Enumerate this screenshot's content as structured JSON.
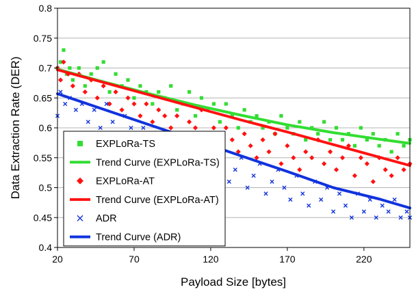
{
  "chart_data": {
    "type": "scatter",
    "title": "",
    "xlabel": "Payload Size [bytes]",
    "ylabel": "Data Extraction Rate (DER)",
    "xlim": [
      20,
      250
    ],
    "ylim": [
      0.4,
      0.8
    ],
    "xticks": [
      20,
      70,
      120,
      170,
      220
    ],
    "xtick_labels": [
      "20",
      "70",
      "120",
      "170",
      "220"
    ],
    "yticks": [
      0.4,
      0.45,
      0.5,
      0.55,
      0.6,
      0.65,
      0.7,
      0.75,
      0.8
    ],
    "ytick_labels": [
      "0.4",
      "0.45",
      "0.5",
      "0.55",
      "0.6",
      "0.65",
      "0.7",
      "0.75",
      "0.8"
    ],
    "grid": "horizontal",
    "legend_position": "left-center",
    "colors": {
      "ts": "#33dd33",
      "at": "#ff1111",
      "adr": "#1133dd"
    },
    "series": [
      {
        "name": "EXPLoRa-TS",
        "kind": "points",
        "marker": "square",
        "color": "#33dd33",
        "x": [
          20,
          22,
          24,
          26,
          28,
          30,
          34,
          38,
          42,
          46,
          50,
          54,
          58,
          62,
          66,
          70,
          74,
          78,
          82,
          86,
          90,
          94,
          98,
          102,
          106,
          110,
          114,
          118,
          122,
          126,
          130,
          134,
          138,
          142,
          146,
          150,
          154,
          158,
          162,
          166,
          170,
          174,
          178,
          182,
          186,
          190,
          194,
          198,
          202,
          206,
          210,
          214,
          218,
          222,
          226,
          230,
          234,
          238,
          242,
          246,
          250
        ],
        "y": [
          0.7,
          0.71,
          0.73,
          0.69,
          0.7,
          0.68,
          0.7,
          0.67,
          0.69,
          0.7,
          0.71,
          0.66,
          0.69,
          0.67,
          0.68,
          0.65,
          0.67,
          0.66,
          0.64,
          0.66,
          0.65,
          0.67,
          0.63,
          0.64,
          0.66,
          0.62,
          0.65,
          0.63,
          0.64,
          0.61,
          0.64,
          0.62,
          0.6,
          0.63,
          0.61,
          0.62,
          0.6,
          0.61,
          0.59,
          0.62,
          0.6,
          0.59,
          0.61,
          0.58,
          0.6,
          0.59,
          0.61,
          0.58,
          0.6,
          0.58,
          0.59,
          0.57,
          0.6,
          0.58,
          0.59,
          0.57,
          0.58,
          0.56,
          0.59,
          0.57,
          0.58
        ]
      },
      {
        "name": "Trend Curve (EXPLoRa-TS)",
        "kind": "line",
        "color": "#33dd33",
        "x": [
          20,
          50,
          80,
          110,
          140,
          170,
          200,
          230,
          250
        ],
        "y": [
          0.698,
          0.677,
          0.657,
          0.638,
          0.621,
          0.605,
          0.592,
          0.581,
          0.574
        ]
      },
      {
        "name": "EXPLoRa-AT",
        "kind": "points",
        "marker": "diamond",
        "color": "#ff1111",
        "x": [
          20,
          22,
          24,
          27,
          30,
          34,
          38,
          42,
          46,
          50,
          54,
          58,
          62,
          66,
          70,
          74,
          78,
          82,
          86,
          90,
          94,
          98,
          102,
          106,
          110,
          114,
          118,
          122,
          126,
          130,
          134,
          138,
          142,
          146,
          150,
          154,
          158,
          162,
          166,
          170,
          174,
          178,
          182,
          186,
          190,
          194,
          198,
          202,
          206,
          210,
          214,
          218,
          222,
          226,
          230,
          234,
          238,
          242,
          246,
          250
        ],
        "y": [
          0.7,
          0.68,
          0.71,
          0.69,
          0.67,
          0.69,
          0.66,
          0.68,
          0.65,
          0.67,
          0.64,
          0.66,
          0.63,
          0.65,
          0.64,
          0.62,
          0.64,
          0.61,
          0.63,
          0.62,
          0.6,
          0.62,
          0.59,
          0.61,
          0.6,
          0.63,
          0.58,
          0.6,
          0.57,
          0.6,
          0.58,
          0.56,
          0.59,
          0.57,
          0.55,
          0.58,
          0.56,
          0.59,
          0.54,
          0.57,
          0.55,
          0.53,
          0.56,
          0.55,
          0.58,
          0.54,
          0.56,
          0.53,
          0.55,
          0.57,
          0.52,
          0.55,
          0.54,
          0.51,
          0.55,
          0.53,
          0.52,
          0.55,
          0.53,
          0.54
        ]
      },
      {
        "name": "Trend Curve (EXPLoRa-AT)",
        "kind": "line",
        "color": "#ff1111",
        "x": [
          20,
          50,
          80,
          110,
          140,
          170,
          200,
          230,
          250
        ],
        "y": [
          0.697,
          0.676,
          0.655,
          0.634,
          0.613,
          0.593,
          0.572,
          0.551,
          0.537
        ]
      },
      {
        "name": "ADR",
        "kind": "points",
        "marker": "x",
        "color": "#1133dd",
        "x": [
          20,
          22,
          25,
          28,
          32,
          36,
          40,
          44,
          48,
          52,
          56,
          60,
          64,
          68,
          72,
          76,
          80,
          84,
          88,
          92,
          96,
          100,
          104,
          108,
          112,
          116,
          120,
          124,
          128,
          132,
          136,
          140,
          144,
          148,
          152,
          156,
          160,
          164,
          168,
          172,
          176,
          180,
          184,
          188,
          192,
          196,
          200,
          204,
          208,
          212,
          216,
          220,
          224,
          228,
          232,
          236,
          240,
          244,
          248,
          250
        ],
        "y": [
          0.62,
          0.66,
          0.64,
          0.65,
          0.63,
          0.64,
          0.61,
          0.63,
          0.6,
          0.64,
          0.61,
          0.59,
          0.62,
          0.6,
          0.58,
          0.6,
          0.57,
          0.59,
          0.56,
          0.58,
          0.55,
          0.57,
          0.54,
          0.56,
          0.58,
          0.53,
          0.55,
          0.52,
          0.56,
          0.51,
          0.53,
          0.55,
          0.5,
          0.52,
          0.54,
          0.49,
          0.51,
          0.53,
          0.5,
          0.48,
          0.52,
          0.49,
          0.47,
          0.51,
          0.48,
          0.5,
          0.46,
          0.49,
          0.47,
          0.45,
          0.49,
          0.46,
          0.48,
          0.45,
          0.47,
          0.46,
          0.48,
          0.45,
          0.46,
          0.45
        ]
      },
      {
        "name": "Trend Curve (ADR)",
        "kind": "line",
        "color": "#1133dd",
        "x": [
          20,
          50,
          80,
          110,
          140,
          170,
          200,
          230,
          250
        ],
        "y": [
          0.657,
          0.631,
          0.605,
          0.579,
          0.553,
          0.527,
          0.5,
          0.481,
          0.466
        ]
      }
    ]
  }
}
